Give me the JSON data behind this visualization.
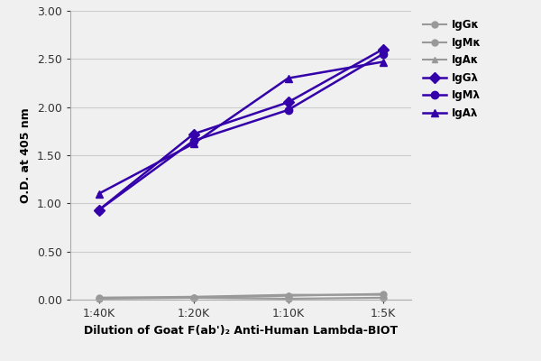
{
  "x_labels": [
    "1:40K",
    "1:20K",
    "1:10K",
    "1:5K"
  ],
  "x_positions": [
    0,
    1,
    2,
    3
  ],
  "series": [
    {
      "label": "IgGκ",
      "color": "#999999",
      "marker": "o",
      "markersize": 5,
      "linewidth": 1.5,
      "values": [
        0.02,
        0.02,
        0.04,
        0.06
      ]
    },
    {
      "label": "IgMκ",
      "color": "#999999",
      "marker": "o",
      "markersize": 5,
      "linewidth": 1.5,
      "values": [
        0.01,
        0.02,
        0.01,
        0.02
      ]
    },
    {
      "label": "IgAκ",
      "color": "#999999",
      "marker": "^",
      "markersize": 5,
      "linewidth": 1.5,
      "values": [
        0.02,
        0.03,
        0.05,
        0.05
      ]
    },
    {
      "label": "IgGλ",
      "color": "#3300aa",
      "marker": "D",
      "markersize": 6,
      "linewidth": 1.8,
      "values": [
        0.93,
        1.72,
        2.05,
        2.6
      ]
    },
    {
      "label": "IgMλ",
      "color": "#3300aa",
      "marker": "o",
      "markersize": 6,
      "linewidth": 1.8,
      "values": [
        0.93,
        1.65,
        1.97,
        2.55
      ]
    },
    {
      "label": "IgAλ",
      "color": "#3300aa",
      "marker": "^",
      "markersize": 6,
      "linewidth": 1.8,
      "values": [
        1.1,
        1.62,
        2.3,
        2.47
      ]
    }
  ],
  "xlabel": "Dilution of Goat F(ab')₂ Anti-Human Lambda-BIOT",
  "ylabel": "O.D. at 405 nm",
  "ylim": [
    0.0,
    3.0
  ],
  "yticks": [
    0.0,
    0.5,
    1.0,
    1.5,
    2.0,
    2.5,
    3.0
  ],
  "background_color": "#f0f0f0",
  "plot_bg_color": "#f0f0f0",
  "grid_color": "#cccccc"
}
